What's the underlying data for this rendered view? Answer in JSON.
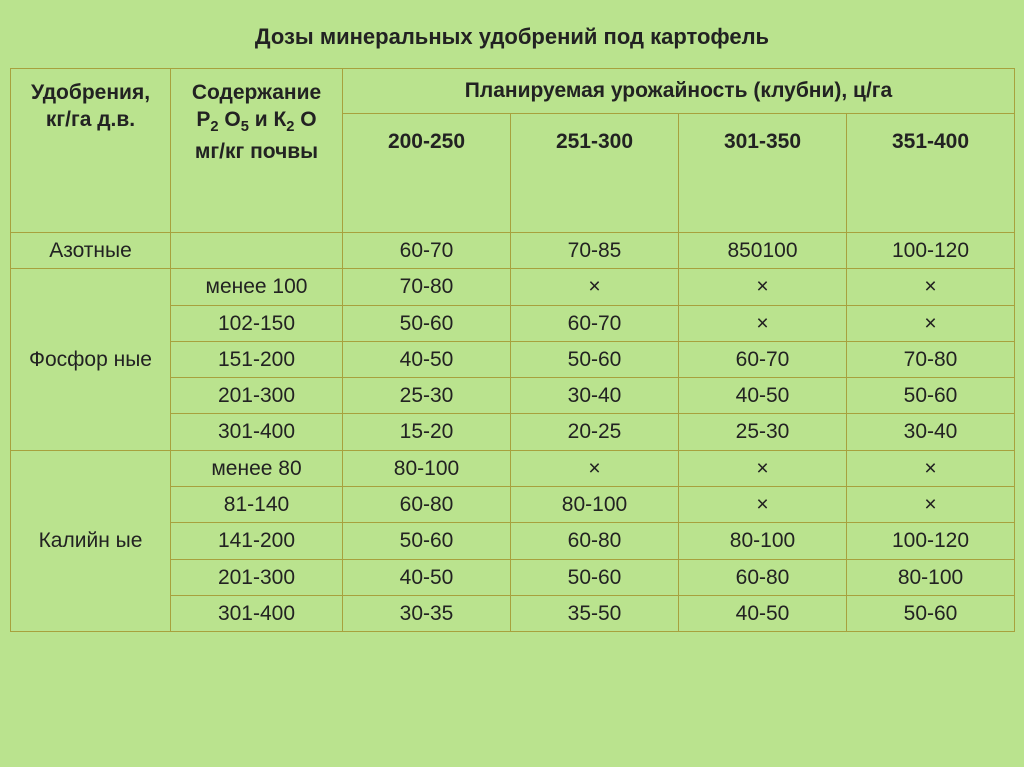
{
  "title": "Дозы минеральных удобрений под картофель",
  "table": {
    "header": {
      "fertilizer": "Удобрения, кг/га д.в.",
      "content_line1": "Содержание",
      "content_line2": "мг/кг почвы",
      "yield_span": "Планируемая урожайность (клубни), ц/га",
      "yield_cols": [
        "200-250",
        "251-300",
        "301-350",
        "351-400"
      ]
    },
    "groups": [
      {
        "name": "Азотные",
        "rows": [
          {
            "content": "",
            "v": [
              "60-70",
              "70-85",
              "850100",
              "100-120"
            ]
          }
        ]
      },
      {
        "name": "Фосфор ные",
        "rows": [
          {
            "content": "менее 100",
            "v": [
              "70-80",
              "×",
              "×",
              "×"
            ]
          },
          {
            "content": "102-150",
            "v": [
              "50-60",
              "60-70",
              "×",
              "×"
            ]
          },
          {
            "content": "151-200",
            "v": [
              "40-50",
              "50-60",
              "60-70",
              "70-80"
            ]
          },
          {
            "content": "201-300",
            "v": [
              "25-30",
              "30-40",
              "40-50",
              "50-60"
            ]
          },
          {
            "content": "301-400",
            "v": [
              "15-20",
              "20-25",
              "25-30",
              "30-40"
            ]
          }
        ]
      },
      {
        "name": "Калийн ые",
        "rows": [
          {
            "content": "менее 80",
            "v": [
              "80-100",
              "×",
              "×",
              "×"
            ]
          },
          {
            "content": "81-140",
            "v": [
              "60-80",
              "80-100",
              "×",
              "×"
            ]
          },
          {
            "content": "141-200",
            "v": [
              "50-60",
              "60-80",
              "80-100",
              "100-120"
            ]
          },
          {
            "content": "201-300",
            "v": [
              "40-50",
              "50-60",
              "60-80",
              "80-100"
            ]
          },
          {
            "content": "301-400",
            "v": [
              "30-35",
              "35-50",
              "40-50",
              "50-60"
            ]
          }
        ]
      }
    ]
  },
  "style": {
    "background": "#bae38e",
    "border_color": "#a7a13e",
    "font_family": "Arial, sans-serif",
    "title_fontsize": 22,
    "cell_fontsize": 21,
    "text_color": "#222222"
  }
}
